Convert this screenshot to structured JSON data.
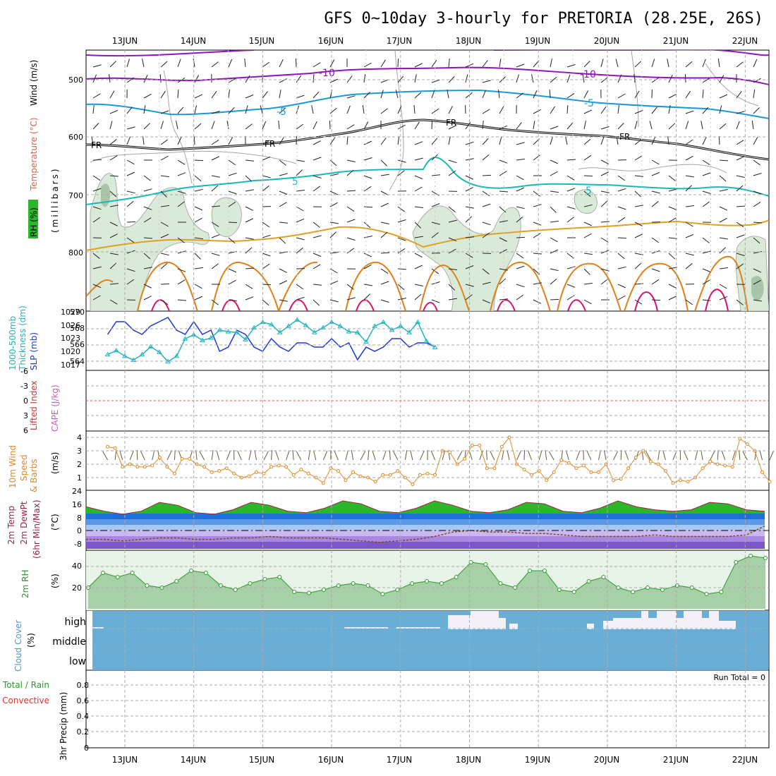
{
  "header": {
    "title": "GFS 0~10day 3-hourly for PRETORIA (28.25E, 26S)"
  },
  "dates": [
    "13JUN",
    "14JUN",
    "15JUN",
    "16JUN",
    "17JUN",
    "18JUN",
    "19JUN",
    "20JUN",
    "21JUN",
    "22JUN"
  ],
  "panels": {
    "upper": {
      "ylabel_rh": "RH (%)",
      "ylabel_temp": "Temperature (°C)",
      "ylabel_wind": "Wind (m/s)",
      "ylabel_mb": "(millibars)",
      "ticks": [
        "500",
        "600",
        "700",
        "800"
      ],
      "contour_labels": [
        "-10",
        "-10",
        "-5",
        "-5",
        "FR",
        "FR",
        "FR",
        "FR",
        "5",
        "5"
      ]
    },
    "slp": {
      "ylabel_a": "1000-500mb",
      "ylabel_b": "Thickness (dm)",
      "ylabel_c": "SLP (mb)",
      "ticks_left": [
        "570",
        "568",
        "566",
        "564"
      ],
      "ticks_right": [
        "1029",
        "1026",
        "1023",
        "1020",
        "1017"
      ]
    },
    "cape": {
      "ylabel_a": "Lifted Index",
      "ylabel_b": "CAPE (J/kg)",
      "ticks": [
        "-6",
        "-3",
        "0",
        "3",
        "6"
      ]
    },
    "wind10": {
      "ylabel_a": "10m Wind",
      "ylabel_b": "Speed",
      "ylabel_c": "& Barbs",
      "ylabel_d": "(m/s)",
      "ticks": [
        "4",
        "3",
        "2",
        "1"
      ]
    },
    "temp": {
      "ylabel_a": "2m Temp",
      "ylabel_b": "2m DewPt",
      "ylabel_c": "(6hr Min/Max)",
      "ylabel_d": "(°C)",
      "ticks": [
        "24",
        "16",
        "8",
        "0",
        "-8"
      ]
    },
    "rh2m": {
      "ylabel_a": "2m RH",
      "ylabel_b": "(%)",
      "ticks": [
        "40",
        "20"
      ]
    },
    "cloud": {
      "ylabel_a": "Cloud Cover",
      "ylabel_b": "(%)",
      "levels": [
        "high",
        "middle",
        "low"
      ]
    },
    "precip": {
      "ylabel_a": "Total / Rain",
      "ylabel_b": "Convective",
      "ylabel_c": "3hr Precip (mm)",
      "ticks": [
        "0.8",
        "0.6",
        "0.4",
        "0.2",
        "0"
      ],
      "run_total": "Run Total = 0"
    }
  },
  "colors": {
    "grid": "#aaaaaa",
    "purple": "#8e16b8",
    "blue": "#1a98d8",
    "cyan": "#1ab8b8",
    "orange": "#e0801a",
    "yellow": "#e0a020",
    "magenta": "#d8106c",
    "rhfill": "#cfe6cf",
    "slp": "#1a38d0",
    "thick": "#20b4c0",
    "wind": "#e08a20",
    "tempfill": "#2ab82a",
    "cloud": "#6aaed6",
    "rhgreen": "#2a9a2a"
  },
  "chart_data": [
    {
      "type": "line",
      "title": "1000-500mb Thickness (dm) / SLP (mb)",
      "x": [
        "12 18Z",
        "13 00Z",
        "13 06Z",
        "13 12Z",
        "13 18Z",
        "14 00Z",
        "14 06Z",
        "14 12Z",
        "14 18Z",
        "15 00Z",
        "15 06Z",
        "15 12Z",
        "15 18Z",
        "16 00Z",
        "16 06Z",
        "16 12Z",
        "16 18Z",
        "17 00Z",
        "17 06Z",
        "17 12Z",
        "17 18Z",
        "18 00Z",
        "18 06Z",
        "18 12Z",
        "18 18Z",
        "19 00Z",
        "19 06Z",
        "19 12Z",
        "19 18Z",
        "20 00Z",
        "20 06Z",
        "20 12Z",
        "20 18Z",
        "21 00Z",
        "21 06Z",
        "21 12Z",
        "21 18Z",
        "22 00Z",
        "22 06Z"
      ],
      "series": [
        {
          "name": "SLP (mb)",
          "values": [
            1024,
            1027,
            1027,
            1025,
            1024,
            1026,
            1027,
            1028,
            1025,
            1024,
            1027,
            1024,
            1025,
            1020,
            1021,
            1025,
            1024,
            1021,
            1020,
            1023,
            1021,
            1020,
            1022,
            1022,
            1021,
            1021,
            1023,
            1021,
            1022,
            1018,
            1021,
            1020,
            1021,
            1023,
            1023,
            1021,
            1022,
            1022,
            1021
          ]
        },
        {
          "name": "Thickness (dm)",
          "values": [
            564.5,
            565,
            564.3,
            563.8,
            564.5,
            565.5,
            564.8,
            563.6,
            564.3,
            566.5,
            567,
            566.3,
            566.6,
            567.6,
            567.4,
            567.3,
            566.4,
            567.9,
            568.6,
            568.3,
            567.3,
            568.1,
            568.9,
            568.2,
            567.3,
            567.9,
            568.6,
            568.1,
            567.4,
            567.3,
            566.1,
            568.1,
            568.6,
            567.6,
            568.1,
            567.3,
            568.6,
            566.2,
            565.4
          ]
        }
      ]
    },
    {
      "type": "line",
      "title": "10m Wind Speed (m/s)",
      "x_start": "12 18Z",
      "x_step_hours": 3,
      "series": [
        {
          "name": "Speed",
          "values": [
            3.3,
            3.2,
            1.8,
            2.0,
            1.8,
            1.8,
            1.9,
            2.5,
            1.8,
            1.3,
            2.4,
            2.4,
            2.0,
            1.8,
            1.4,
            1.5,
            1.7,
            1.3,
            1.0,
            1.1,
            1.4,
            1.3,
            1.8,
            1.9,
            1.8,
            1.2,
            1.6,
            1.3,
            1.0,
            0.6,
            1.7,
            1.5,
            0.8,
            1.4,
            1.1,
            1.0,
            0.7,
            1.2,
            1.2,
            1.5,
            1.0,
            0.5,
            1.2,
            1.3,
            1.2,
            3.0,
            2.9,
            2.0,
            2.4,
            3.4,
            3.4,
            1.7,
            1.7,
            3.3,
            4.0,
            2.0,
            1.6,
            1.2,
            1.5,
            0.8,
            1.4,
            2.3,
            2.1,
            1.7,
            1.9,
            1.4,
            1.4,
            2.0,
            0.8,
            0.9,
            1.7,
            2.5,
            3.0,
            2.2,
            2.0,
            1.5,
            0.6,
            0.8,
            0.7,
            1.0,
            1.7,
            2.2,
            2.0,
            1.9,
            1.8,
            3.9,
            3.5,
            3.0,
            1.4,
            0.7
          ]
        }
      ],
      "ylim": [
        0,
        4
      ]
    },
    {
      "type": "area",
      "title": "2m Temp / 2m DewPt (°C)",
      "series": [
        {
          "name": "2m Temp",
          "values": [
            16,
            13,
            11,
            13,
            19,
            17,
            12,
            11,
            14,
            19,
            17,
            13,
            12,
            15,
            20,
            18,
            13,
            12,
            15,
            20,
            17,
            13,
            12,
            14,
            19,
            18,
            13,
            12,
            15,
            20,
            16,
            14,
            13,
            14,
            19,
            18,
            14,
            13
          ]
        },
        {
          "name": "2m DewPt",
          "values": [
            -6,
            -6,
            -7,
            -6,
            -5,
            -5,
            -6,
            -6,
            -5,
            -5,
            -4,
            -5,
            -5,
            -5,
            -6,
            -7,
            -8,
            -7,
            -6,
            -4,
            -1,
            0,
            -1,
            -1,
            -2,
            -2,
            -3,
            -4,
            -4,
            -4,
            -4,
            -3,
            -4,
            -4,
            -4,
            -4,
            -3,
            3
          ]
        }
      ],
      "ylim": [
        -12,
        24
      ]
    },
    {
      "type": "area",
      "title": "2m RH (%)",
      "series": [
        {
          "name": "2m RH",
          "values": [
            20,
            34,
            30,
            34,
            22,
            20,
            26,
            36,
            34,
            22,
            18,
            24,
            28,
            30,
            16,
            15,
            18,
            22,
            24,
            22,
            14,
            18,
            24,
            26,
            24,
            30,
            44,
            42,
            24,
            20,
            36,
            36,
            18,
            16,
            26,
            30,
            20,
            16,
            20,
            18,
            22,
            20,
            14,
            16,
            44,
            50,
            48
          ]
        }
      ],
      "ylim": [
        0,
        55
      ]
    },
    {
      "type": "bar",
      "title": "3hr Precip (mm)",
      "ylim": [
        0,
        1
      ],
      "values": [],
      "annotations": [
        "Run Total = 0"
      ]
    }
  ]
}
